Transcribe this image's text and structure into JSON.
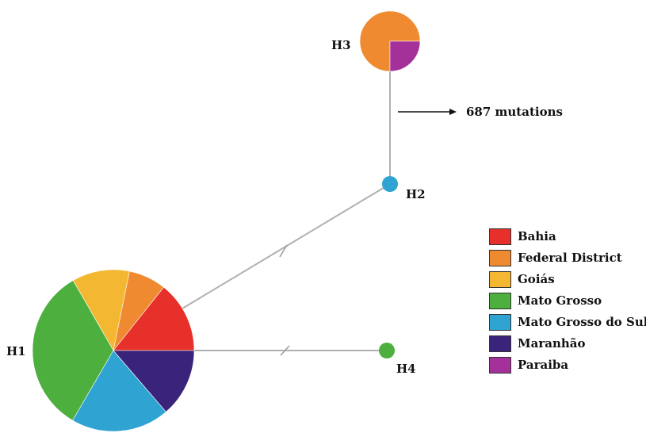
{
  "haplotypes": [
    {
      "id": "H1",
      "slices": [
        {
          "region": "Bahia",
          "fraction": 0.143
        },
        {
          "region": "Federal District",
          "fraction": 0.075
        },
        {
          "region": "Goiás",
          "fraction": 0.115
        },
        {
          "region": "Mato Grosso",
          "fraction": 0.333
        },
        {
          "region": "Mato Grosso do Sul",
          "fraction": 0.197
        },
        {
          "region": "Maranhão",
          "fraction": 0.137
        }
      ]
    },
    {
      "id": "H2",
      "slices": [
        {
          "region": "Mato Grosso do Sul",
          "fraction": 1
        }
      ]
    },
    {
      "id": "H3",
      "slices": [
        {
          "region": "Federal District",
          "fraction": 0.75
        },
        {
          "region": "Paraiba",
          "fraction": 0.25
        }
      ]
    },
    {
      "id": "H4",
      "slices": [
        {
          "region": "Mato Grosso",
          "fraction": 1
        }
      ]
    }
  ],
  "links": [
    {
      "from": "H1",
      "to": "H2",
      "hatch_marks": 1
    },
    {
      "from": "H2",
      "to": "H3",
      "annotation": "687 mutations"
    },
    {
      "from": "H1",
      "to": "H4",
      "hatch_marks": 1
    }
  ],
  "legend": [
    {
      "label": "Bahia",
      "color": "#e8302a"
    },
    {
      "label": "Federal District",
      "color": "#f08a30"
    },
    {
      "label": "Goiás",
      "color": "#f4b731"
    },
    {
      "label": "Mato Grosso",
      "color": "#4caf3e"
    },
    {
      "label": "Mato Grosso do Sul",
      "color": "#2fa4d2"
    },
    {
      "label": "Maranhão",
      "color": "#3a237a"
    },
    {
      "label": "Paraiba",
      "color": "#a4309a"
    }
  ]
}
